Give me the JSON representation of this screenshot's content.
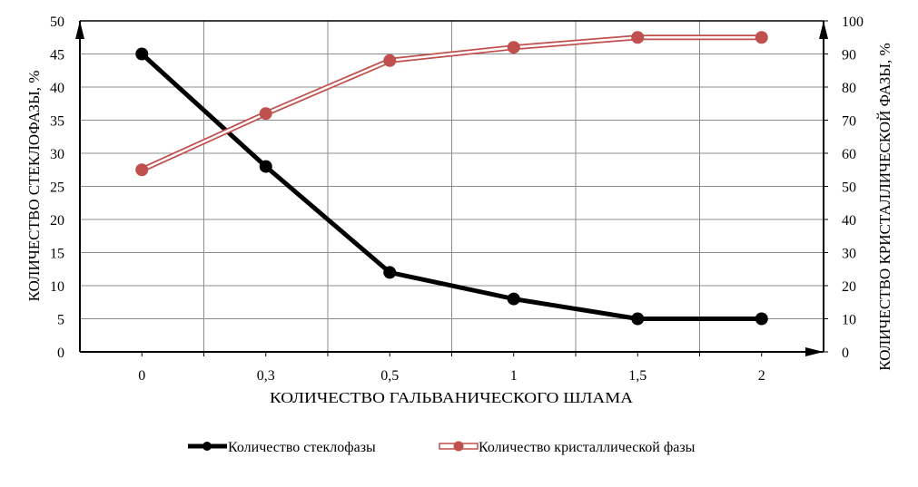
{
  "chart_data": {
    "type": "line",
    "title": "",
    "xlabel": "КОЛИЧЕСТВО ГАЛЬВАНИЧЕСКОГО ШЛАМА",
    "ylabel": "КОЛИЧЕСТВО СТЕКЛОФАЗЫ, %",
    "y2label": "КОЛИЧЕСТВО КРИСТАЛЛИЧЕСКОЙ ФАЗЫ, %",
    "categories": [
      "0",
      "0,3",
      "0,5",
      "1",
      "1,5",
      "2"
    ],
    "ylim": [
      0,
      50
    ],
    "y2lim": [
      0,
      100
    ],
    "yticks": [
      "0",
      "5",
      "10",
      "15",
      "20",
      "25",
      "30",
      "35",
      "40",
      "45",
      "50"
    ],
    "y2ticks": [
      "0",
      "10",
      "20",
      "30",
      "40",
      "50",
      "60",
      "70",
      "80",
      "90",
      "100"
    ],
    "grid": true,
    "legend_position": "bottom",
    "series": [
      {
        "name": "Количество стеклофазы",
        "axis": "left",
        "color": "#000000",
        "values": [
          45,
          28,
          12,
          8,
          5,
          5
        ]
      },
      {
        "name": "Количество кристаллической фазы",
        "axis": "right",
        "color": "#c0504d",
        "values": [
          55,
          72,
          88,
          92,
          95,
          95
        ]
      }
    ]
  }
}
